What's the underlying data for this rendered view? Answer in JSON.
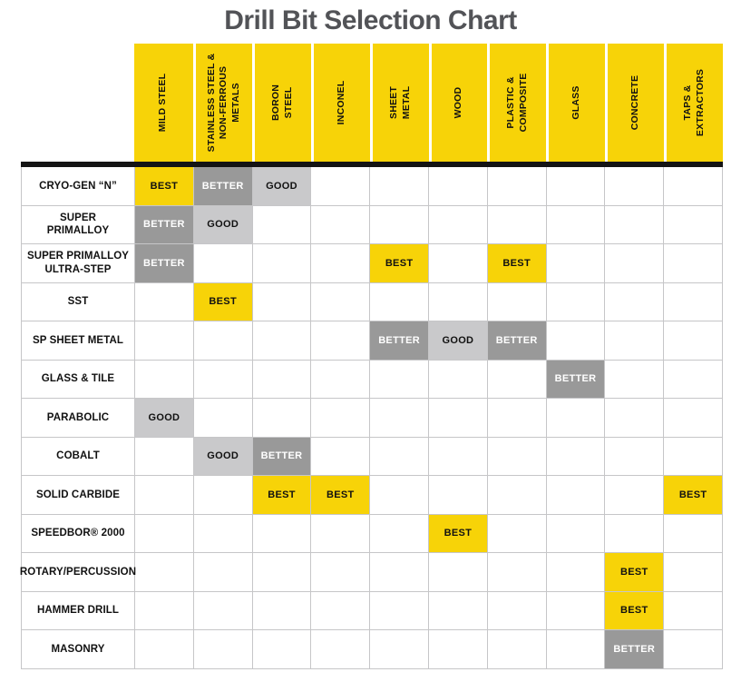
{
  "title": "Drill Bit Selection Chart",
  "colors": {
    "header_bg": "#F7D308",
    "best_bg": "#F7D308",
    "better_bg": "#999999",
    "good_bg": "#C9C9CB",
    "grid_line": "#C6C6C8",
    "divider": "#141414",
    "title_color": "#525357",
    "better_text": "#FFFFFF",
    "default_text": "#111111"
  },
  "chart_data": {
    "type": "table",
    "title": "Drill Bit Selection Chart",
    "rating_scale": [
      "BEST",
      "BETTER",
      "GOOD"
    ],
    "columns": [
      "MILD STEEL",
      "STAINLESS STEEL &\nNON-FERROUS METALS",
      "BORON\nSTEEL",
      "INCONEL",
      "SHEET\nMETAL",
      "WOOD",
      "PLASTIC &\nCOMPOSITE",
      "GLASS",
      "CONCRETE",
      "TAPS &\nEXTRACTORS"
    ],
    "rows": [
      {
        "label": "CRYO-GEN “N”",
        "ratings": [
          "BEST",
          "BETTER",
          "GOOD",
          "",
          "",
          "",
          "",
          "",
          "",
          ""
        ]
      },
      {
        "label": "SUPER\nPRIMALLOY",
        "ratings": [
          "BETTER",
          "GOOD",
          "",
          "",
          "",
          "",
          "",
          "",
          "",
          ""
        ]
      },
      {
        "label": "SUPER PRIMALLOY\nULTRA-STEP",
        "ratings": [
          "BETTER",
          "",
          "",
          "",
          "BEST",
          "",
          "BEST",
          "",
          "",
          ""
        ]
      },
      {
        "label": "SST",
        "ratings": [
          "",
          "BEST",
          "",
          "",
          "",
          "",
          "",
          "",
          "",
          ""
        ]
      },
      {
        "label": "SP SHEET METAL",
        "ratings": [
          "",
          "",
          "",
          "",
          "BETTER",
          "GOOD",
          "BETTER",
          "",
          "",
          ""
        ]
      },
      {
        "label": "GLASS & TILE",
        "ratings": [
          "",
          "",
          "",
          "",
          "",
          "",
          "",
          "BETTER",
          "",
          ""
        ]
      },
      {
        "label": "PARABOLIC",
        "ratings": [
          "GOOD",
          "",
          "",
          "",
          "",
          "",
          "",
          "",
          "",
          ""
        ]
      },
      {
        "label": "COBALT",
        "ratings": [
          "",
          "GOOD",
          "BETTER",
          "",
          "",
          "",
          "",
          "",
          "",
          ""
        ]
      },
      {
        "label": "SOLID CARBIDE",
        "ratings": [
          "",
          "",
          "BEST",
          "BEST",
          "",
          "",
          "",
          "",
          "",
          "BEST"
        ]
      },
      {
        "label": "SPEEDBOR® 2000",
        "ratings": [
          "",
          "",
          "",
          "",
          "",
          "BEST",
          "",
          "",
          "",
          ""
        ]
      },
      {
        "label": "ROTARY/PERCUSSION",
        "ratings": [
          "",
          "",
          "",
          "",
          "",
          "",
          "",
          "",
          "BEST",
          ""
        ]
      },
      {
        "label": "HAMMER DRILL",
        "ratings": [
          "",
          "",
          "",
          "",
          "",
          "",
          "",
          "",
          "BEST",
          ""
        ]
      },
      {
        "label": "MASONRY",
        "ratings": [
          "",
          "",
          "",
          "",
          "",
          "",
          "",
          "",
          "BETTER",
          ""
        ]
      }
    ]
  }
}
